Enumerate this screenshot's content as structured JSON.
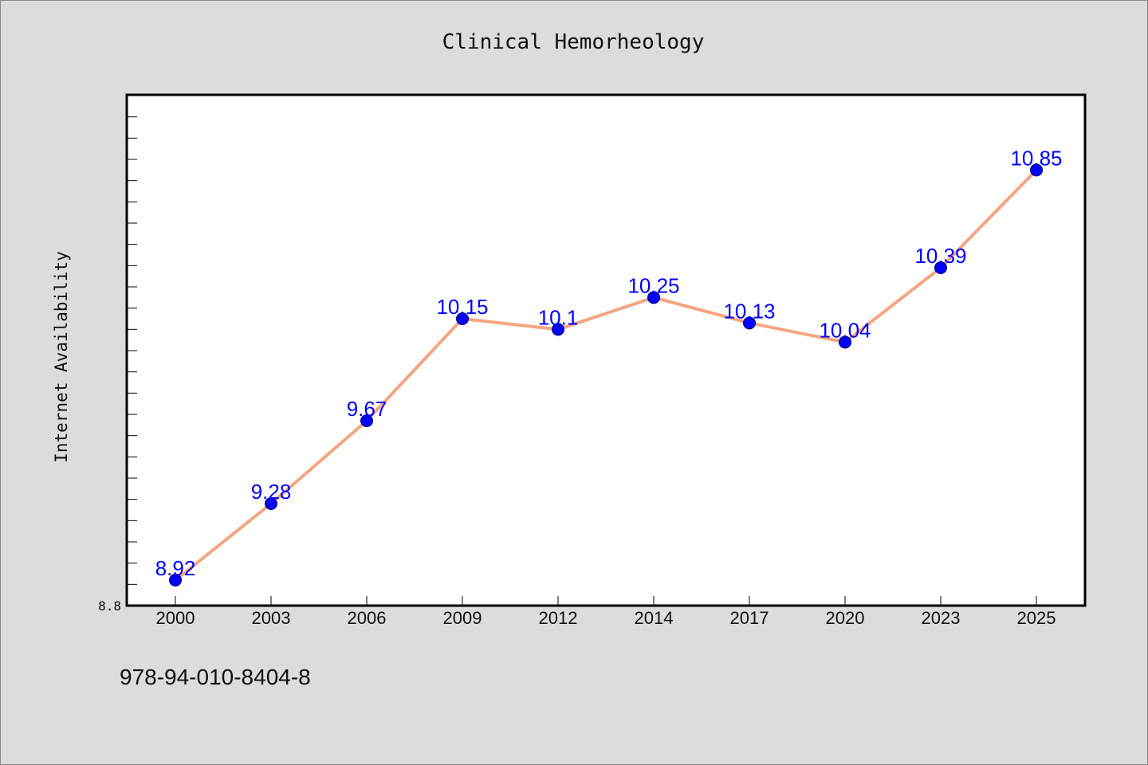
{
  "chart_data": {
    "type": "line",
    "title": "Clinical Hemorheology",
    "xlabel": "",
    "ylabel": "Internet Availability",
    "categories": [
      "2000",
      "2003",
      "2006",
      "2009",
      "2012",
      "2014",
      "2017",
      "2020",
      "2023",
      "2025"
    ],
    "series": [
      {
        "values": [
          8.92,
          9.28,
          9.67,
          10.15,
          10.1,
          10.25,
          10.13,
          10.04,
          10.39,
          10.85
        ]
      }
    ],
    "data_labels": [
      "8.92",
      "9.28",
      "9.67",
      "10.15",
      "10.1",
      "10.25",
      "10.13",
      "10.04",
      "10.39",
      "10.85"
    ],
    "ylim": [
      8.8,
      11.2
    ],
    "y_tick_labels": [
      "8.8"
    ],
    "grid": false,
    "legend": "none",
    "colors": {
      "line": "#f4a582",
      "marker": "#0000ff",
      "label": "#0000ff",
      "background": "#dcdcdc",
      "plot_background": "#ffffff"
    }
  },
  "footnote": "978-94-010-8404-8"
}
